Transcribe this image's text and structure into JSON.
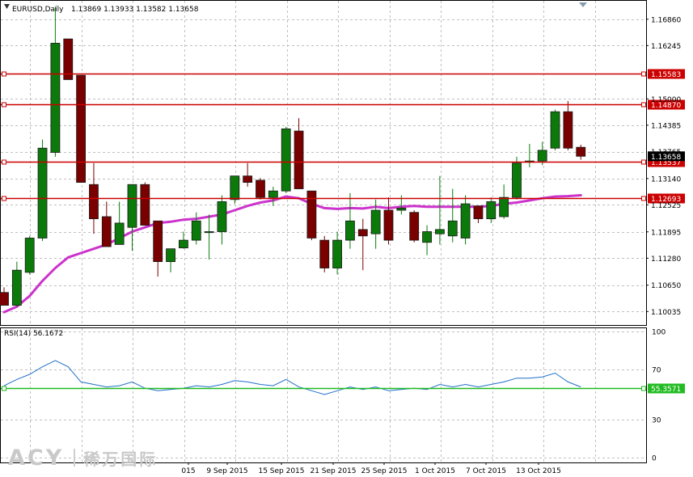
{
  "main_window": {
    "symbol": "EURUSD,Daily",
    "ohlc": "1.13869 1.13933 1.13582 1.13658",
    "dropdown_icon": "triangle-down-icon"
  },
  "colors": {
    "bull": "#0b7a0b",
    "bear": "#7a0000",
    "ma": "#cc33cc",
    "level": "#cc0000",
    "rsi_line": "#1f6fc8",
    "rsi_level": "#22bb22",
    "grid": "#c0c0c0",
    "frame": "#000000"
  },
  "chart_data": [
    {
      "type": "candlestick",
      "title": "EURUSD,Daily",
      "ylim": [
        1.0972,
        1.1729
      ],
      "price_axis_ticks": [
        "1.16860",
        "1.16245",
        "1.15000",
        "1.14385",
        "1.13140",
        "1.12525",
        "1.11895",
        "1.11280",
        "1.10650",
        "1.10035"
      ],
      "overlapped_tick": "1.13765",
      "time_axis_labels": [
        "015",
        "9 Sep 2015",
        "15 Sep 2015",
        "21 Sep 2015",
        "25 Sep 2015",
        "1 Oct 2015",
        "7 Oct 2015",
        "13 Oct 2015"
      ],
      "candles": [
        {
          "o": 1.1048,
          "h": 1.106,
          "l": 1.1018,
          "c": 1.1018
        },
        {
          "o": 1.1018,
          "h": 1.112,
          "l": 1.1015,
          "c": 1.11
        },
        {
          "o": 1.1095,
          "h": 1.118,
          "l": 1.109,
          "c": 1.1175
        },
        {
          "o": 1.1175,
          "h": 1.1405,
          "l": 1.1168,
          "c": 1.1385
        },
        {
          "o": 1.1375,
          "h": 1.1715,
          "l": 1.1365,
          "c": 1.163
        },
        {
          "o": 1.164,
          "h": 1.164,
          "l": 1.1545,
          "c": 1.1545
        },
        {
          "o": 1.1555,
          "h": 1.1555,
          "l": 1.1305,
          "c": 1.1305
        },
        {
          "o": 1.13,
          "h": 1.135,
          "l": 1.1185,
          "c": 1.122
        },
        {
          "o": 1.1225,
          "h": 1.126,
          "l": 1.1155,
          "c": 1.1155
        },
        {
          "o": 1.116,
          "h": 1.126,
          "l": 1.116,
          "c": 1.121
        },
        {
          "o": 1.12,
          "h": 1.13,
          "l": 1.1145,
          "c": 1.13
        },
        {
          "o": 1.13,
          "h": 1.1305,
          "l": 1.1205,
          "c": 1.1205
        },
        {
          "o": 1.1215,
          "h": 1.1215,
          "l": 1.1085,
          "c": 1.112
        },
        {
          "o": 1.112,
          "h": 1.115,
          "l": 1.1095,
          "c": 1.115
        },
        {
          "o": 1.1152,
          "h": 1.119,
          "l": 1.115,
          "c": 1.117
        },
        {
          "o": 1.117,
          "h": 1.1235,
          "l": 1.116,
          "c": 1.1215
        },
        {
          "o": 1.119,
          "h": 1.123,
          "l": 1.1125,
          "c": 1.119
        },
        {
          "o": 1.119,
          "h": 1.1275,
          "l": 1.116,
          "c": 1.126
        },
        {
          "o": 1.1265,
          "h": 1.132,
          "l": 1.1255,
          "c": 1.132
        },
        {
          "o": 1.132,
          "h": 1.135,
          "l": 1.1295,
          "c": 1.1305
        },
        {
          "o": 1.131,
          "h": 1.1315,
          "l": 1.1265,
          "c": 1.127
        },
        {
          "o": 1.127,
          "h": 1.1295,
          "l": 1.125,
          "c": 1.1285
        },
        {
          "o": 1.1285,
          "h": 1.1435,
          "l": 1.128,
          "c": 1.143
        },
        {
          "o": 1.1425,
          "h": 1.1455,
          "l": 1.129,
          "c": 1.129
        },
        {
          "o": 1.1285,
          "h": 1.1285,
          "l": 1.117,
          "c": 1.1175
        },
        {
          "o": 1.117,
          "h": 1.118,
          "l": 1.1095,
          "c": 1.1105
        },
        {
          "o": 1.1105,
          "h": 1.119,
          "l": 1.109,
          "c": 1.117
        },
        {
          "o": 1.117,
          "h": 1.128,
          "l": 1.115,
          "c": 1.1215
        },
        {
          "o": 1.1195,
          "h": 1.122,
          "l": 1.11,
          "c": 1.118
        },
        {
          "o": 1.1185,
          "h": 1.1265,
          "l": 1.115,
          "c": 1.124
        },
        {
          "o": 1.124,
          "h": 1.127,
          "l": 1.116,
          "c": 1.117
        },
        {
          "o": 1.124,
          "h": 1.1275,
          "l": 1.123,
          "c": 1.1245
        },
        {
          "o": 1.1235,
          "h": 1.124,
          "l": 1.1165,
          "c": 1.117
        },
        {
          "o": 1.1165,
          "h": 1.1205,
          "l": 1.1135,
          "c": 1.119
        },
        {
          "o": 1.1185,
          "h": 1.132,
          "l": 1.116,
          "c": 1.1195
        },
        {
          "o": 1.118,
          "h": 1.129,
          "l": 1.1165,
          "c": 1.1215
        },
        {
          "o": 1.1175,
          "h": 1.1275,
          "l": 1.116,
          "c": 1.1255
        },
        {
          "o": 1.125,
          "h": 1.125,
          "l": 1.121,
          "c": 1.122
        },
        {
          "o": 1.122,
          "h": 1.127,
          "l": 1.121,
          "c": 1.126
        },
        {
          "o": 1.1225,
          "h": 1.13,
          "l": 1.122,
          "c": 1.127
        },
        {
          "o": 1.127,
          "h": 1.1365,
          "l": 1.1265,
          "c": 1.135
        },
        {
          "o": 1.1352,
          "h": 1.1395,
          "l": 1.134,
          "c": 1.1355
        },
        {
          "o": 1.1355,
          "h": 1.14,
          "l": 1.1345,
          "c": 1.138
        },
        {
          "o": 1.1385,
          "h": 1.1475,
          "l": 1.138,
          "c": 1.147
        },
        {
          "o": 1.147,
          "h": 1.1495,
          "l": 1.138,
          "c": 1.1385
        },
        {
          "o": 1.1387,
          "h": 1.1393,
          "l": 1.1358,
          "c": 1.1366
        }
      ],
      "moving_average": [
        1.1002,
        1.1015,
        1.104,
        1.1075,
        1.1105,
        1.113,
        1.114,
        1.115,
        1.116,
        1.1175,
        1.119,
        1.12,
        1.121,
        1.1213,
        1.1218,
        1.122,
        1.1225,
        1.123,
        1.124,
        1.125,
        1.1258,
        1.1263,
        1.1272,
        1.1268,
        1.1255,
        1.1245,
        1.1243,
        1.1245,
        1.1244,
        1.1248,
        1.1245,
        1.1248,
        1.125,
        1.1248,
        1.1248,
        1.1248,
        1.1248,
        1.1248,
        1.125,
        1.1255,
        1.1258,
        1.1263,
        1.1268,
        1.1272,
        1.1273,
        1.1275
      ],
      "horizontal_levels": [
        {
          "label": "1.15583",
          "value": 1.15583
        },
        {
          "label": "1.14870",
          "value": 1.1487
        },
        {
          "label": "1.13537",
          "value": 1.13537
        },
        {
          "label": "1.12693",
          "value": 1.12693
        }
      ],
      "current_price_label": "1.13658",
      "grid": true
    },
    {
      "type": "line",
      "title": "RSI(14) 56.1672",
      "ylim": [
        0,
        100
      ],
      "axis_ticks": [
        "100",
        "70",
        "30",
        "0"
      ],
      "values": [
        57,
        62,
        66,
        72,
        77,
        72,
        60,
        58,
        56,
        57,
        60,
        55,
        53,
        54,
        55,
        57,
        56,
        58,
        61,
        60,
        58,
        57,
        62,
        56,
        53,
        50,
        53,
        56,
        54,
        56,
        53,
        54,
        55,
        54,
        58,
        56,
        58,
        56,
        58,
        60,
        63,
        63,
        64,
        67,
        60,
        56
      ],
      "level": {
        "label": "55.3571",
        "value": 55.3571
      }
    }
  ],
  "watermark": {
    "logo": "ACY",
    "company_cn": "稀万国际"
  }
}
